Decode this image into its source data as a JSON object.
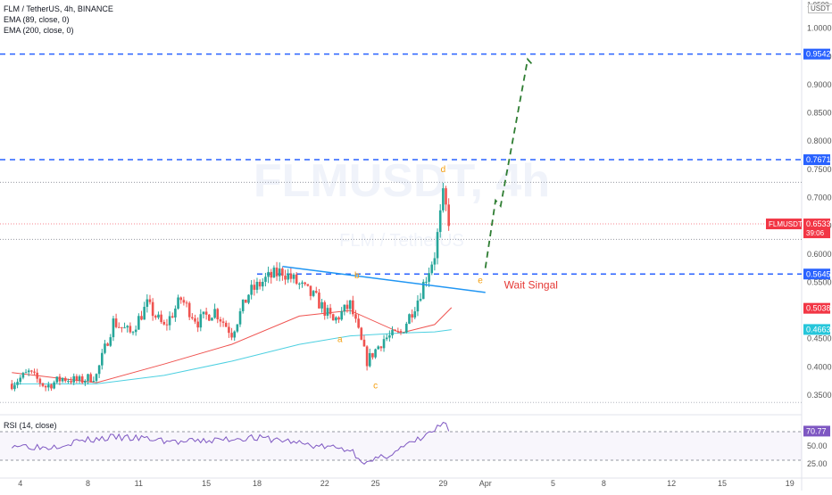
{
  "legend": {
    "symbol": "FLM / TetherUS, 4h, BINANCE",
    "ema1": "EMA (89, close, 0)",
    "ema2": "EMA (200, close, 0)",
    "rsi": "RSI (14, close)"
  },
  "watermark": {
    "main": "FLMUSDT, 4h",
    "sub": "FLM / TetherUS"
  },
  "currency": "USDT",
  "chart_data": {
    "type": "candlestick",
    "y_axis": {
      "ticks": [
        "1.0000",
        "0.9500",
        "0.9000",
        "0.8500",
        "0.8000",
        "0.7500",
        "0.7000",
        "0.6500",
        "0.6000",
        "0.5500",
        "0.4500",
        "0.4000",
        "0.3500"
      ],
      "range": [
        0.32,
        1.05
      ],
      "top_tick_partial": "1.0500"
    },
    "x_axis": {
      "ticks": [
        {
          "label": "4",
          "x": 0.5
        },
        {
          "label": "8",
          "x": 4.5
        },
        {
          "label": "11",
          "x": 7.5
        },
        {
          "label": "15",
          "x": 11.5
        },
        {
          "label": "18",
          "x": 14.5
        },
        {
          "label": "22",
          "x": 18.5
        },
        {
          "label": "25",
          "x": 21.5
        },
        {
          "label": "29",
          "x": 25.5
        },
        {
          "label": "Apr",
          "x": 28
        },
        {
          "label": "5",
          "x": 32
        },
        {
          "label": "8",
          "x": 35
        },
        {
          "label": "12",
          "x": 39
        },
        {
          "label": "15",
          "x": 42
        },
        {
          "label": "19",
          "x": 46
        }
      ],
      "range": [
        -0.7,
        46.7
      ]
    },
    "price_path": [
      [
        0,
        0.37
      ],
      [
        1,
        0.39
      ],
      [
        2,
        0.365
      ],
      [
        3,
        0.38
      ],
      [
        4,
        0.375
      ],
      [
        5,
        0.385
      ],
      [
        6,
        0.48
      ],
      [
        7,
        0.46
      ],
      [
        8,
        0.51
      ],
      [
        9,
        0.47
      ],
      [
        10,
        0.52
      ],
      [
        11,
        0.48
      ],
      [
        12,
        0.5
      ],
      [
        13,
        0.46
      ],
      [
        14,
        0.53
      ],
      [
        15,
        0.555
      ],
      [
        16,
        0.57
      ],
      [
        17,
        0.545
      ],
      [
        18,
        0.52
      ],
      [
        19,
        0.48
      ],
      [
        20,
        0.51
      ],
      [
        21,
        0.41
      ],
      [
        22,
        0.45
      ],
      [
        23,
        0.46
      ],
      [
        24,
        0.52
      ],
      [
        25,
        0.6
      ],
      [
        25.5,
        0.7
      ],
      [
        25.9,
        0.653
      ]
    ],
    "ema89": [
      [
        0,
        0.39
      ],
      [
        5,
        0.372
      ],
      [
        9,
        0.405
      ],
      [
        13,
        0.44
      ],
      [
        17,
        0.49
      ],
      [
        20,
        0.5
      ],
      [
        23,
        0.46
      ],
      [
        25,
        0.475
      ],
      [
        26,
        0.505
      ]
    ],
    "ema200": [
      [
        0,
        0.37
      ],
      [
        5,
        0.37
      ],
      [
        9,
        0.385
      ],
      [
        13,
        0.41
      ],
      [
        17,
        0.44
      ],
      [
        20,
        0.455
      ],
      [
        23,
        0.46
      ],
      [
        25,
        0.462
      ],
      [
        26,
        0.466
      ]
    ],
    "rsi": {
      "ticks": [
        "70.77",
        "50.00",
        "25.00"
      ],
      "range": [
        15,
        90
      ],
      "bands": [
        70,
        30
      ],
      "path": [
        [
          0,
          52
        ],
        [
          2,
          48
        ],
        [
          4,
          57
        ],
        [
          6,
          62
        ],
        [
          8,
          60
        ],
        [
          10,
          55
        ],
        [
          12,
          58
        ],
        [
          14,
          62
        ],
        [
          16,
          58
        ],
        [
          18,
          50
        ],
        [
          20,
          45
        ],
        [
          21,
          25
        ],
        [
          22,
          35
        ],
        [
          24,
          58
        ],
        [
          25,
          72
        ],
        [
          25.5,
          82
        ],
        [
          25.9,
          70.77
        ]
      ]
    },
    "horizontal_levels": [
      {
        "value": 0.9542,
        "label": "0.9542",
        "style": "dashed",
        "color": "#2962ff"
      },
      {
        "value": 0.7671,
        "label": "0.7671",
        "style": "dashed",
        "color": "#2962ff"
      },
      {
        "value": 0.5645,
        "label": "0.5645",
        "style": "dashed",
        "color": "#2962ff"
      }
    ],
    "price_badges": [
      {
        "value": 0.6533,
        "label": "0.6533",
        "sub": "39:06",
        "tag": "FLMUSDT",
        "color": "#f23645"
      },
      {
        "value": 0.5038,
        "label": "0.5038",
        "color": "#f23645"
      },
      {
        "value": 0.4663,
        "label": "0.4663",
        "color": "#26c6da"
      }
    ],
    "trendline": {
      "from": [
        16,
        0.578
      ],
      "to": [
        28,
        0.532
      ],
      "color": "#2196f3"
    },
    "projection": {
      "color": "#2e7d32",
      "path": [
        [
          28,
          0.575
        ],
        [
          28.6,
          0.695
        ],
        [
          28.9,
          0.685
        ],
        [
          29.3,
          0.75
        ],
        [
          30.5,
          0.945
        ],
        [
          30.8,
          0.935
        ]
      ]
    },
    "wave_labels": [
      {
        "text": "a",
        "x": 19.4,
        "y": 0.444
      },
      {
        "text": "b",
        "x": 20.4,
        "y": 0.557
      },
      {
        "text": "c",
        "x": 21.5,
        "y": 0.362
      },
      {
        "text": "d",
        "x": 25.5,
        "y": 0.745
      },
      {
        "text": "e",
        "x": 27.7,
        "y": 0.548
      }
    ],
    "annotation": {
      "text": "Wait Singal",
      "x": 29,
      "y": 0.545,
      "color": "#e53935"
    }
  }
}
